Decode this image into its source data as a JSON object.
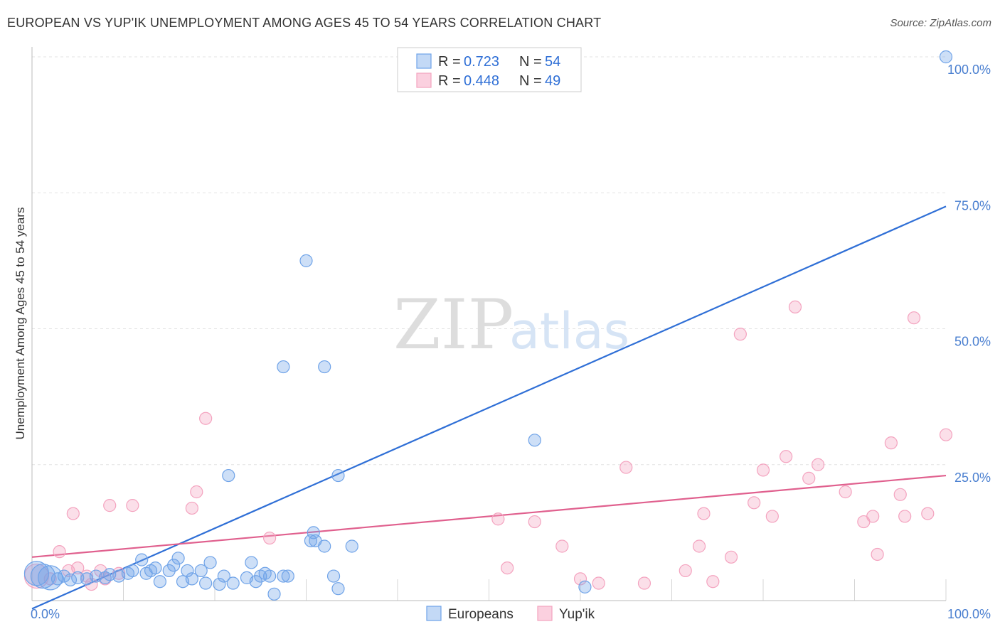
{
  "title": "EUROPEAN VS YUP'IK UNEMPLOYMENT AMONG AGES 45 TO 54 YEARS CORRELATION CHART",
  "source": "Source: ZipAtlas.com",
  "watermark": {
    "zip": "ZIP",
    "atlas": "atlas"
  },
  "chart_data": {
    "type": "scatter",
    "title": "EUROPEAN VS YUP'IK UNEMPLOYMENT AMONG AGES 45 TO 54 YEARS CORRELATION CHART",
    "xlabel": "",
    "ylabel": "Unemployment Among Ages 45 to 54 years",
    "xlim": [
      0,
      100
    ],
    "ylim": [
      0,
      100
    ],
    "x_ticks": [
      "0.0%",
      "100.0%"
    ],
    "y_ticks": [
      {
        "value": 25,
        "label": "25.0%"
      },
      {
        "value": 50,
        "label": "50.0%"
      },
      {
        "value": 75,
        "label": "75.0%"
      },
      {
        "value": 100,
        "label": "100.0%"
      }
    ],
    "grid": true,
    "legend_position": "top-center",
    "series": [
      {
        "name": "Europeans",
        "color": "#6fa3e8",
        "line_color": "#2f6fd6",
        "r_label": "R =",
        "r_value": "0.723",
        "n_label": "N =",
        "n_value": "54",
        "trend": {
          "x": [
            0,
            100
          ],
          "y": [
            -1.5,
            72.5
          ]
        },
        "points": [
          {
            "x": 0.5,
            "y": 5.0,
            "big": true
          },
          {
            "x": 1.2,
            "y": 4.5,
            "big": true
          },
          {
            "x": 2.0,
            "y": 4.2,
            "big": true
          },
          {
            "x": 2.8,
            "y": 4.0
          },
          {
            "x": 3.5,
            "y": 4.5
          },
          {
            "x": 4.2,
            "y": 3.8
          },
          {
            "x": 5.0,
            "y": 4.2
          },
          {
            "x": 6.0,
            "y": 4.0
          },
          {
            "x": 7.0,
            "y": 4.5
          },
          {
            "x": 8.0,
            "y": 4.2
          },
          {
            "x": 8.5,
            "y": 4.8
          },
          {
            "x": 9.5,
            "y": 4.5
          },
          {
            "x": 10.5,
            "y": 5.0
          },
          {
            "x": 11.0,
            "y": 5.5
          },
          {
            "x": 12.0,
            "y": 7.5
          },
          {
            "x": 12.5,
            "y": 5.0
          },
          {
            "x": 13.0,
            "y": 5.5
          },
          {
            "x": 13.5,
            "y": 6.0
          },
          {
            "x": 14.0,
            "y": 3.5
          },
          {
            "x": 15.0,
            "y": 5.5
          },
          {
            "x": 15.5,
            "y": 6.5
          },
          {
            "x": 16.0,
            "y": 7.8
          },
          {
            "x": 16.5,
            "y": 3.5
          },
          {
            "x": 17.0,
            "y": 5.5
          },
          {
            "x": 17.5,
            "y": 4.0
          },
          {
            "x": 18.5,
            "y": 5.5
          },
          {
            "x": 19.0,
            "y": 3.2
          },
          {
            "x": 19.5,
            "y": 7.0
          },
          {
            "x": 20.5,
            "y": 3.0
          },
          {
            "x": 21.0,
            "y": 4.5
          },
          {
            "x": 22.0,
            "y": 3.2
          },
          {
            "x": 23.5,
            "y": 4.2
          },
          {
            "x": 24.0,
            "y": 7.0
          },
          {
            "x": 24.5,
            "y": 3.5
          },
          {
            "x": 25.0,
            "y": 4.5
          },
          {
            "x": 25.5,
            "y": 5.0
          },
          {
            "x": 26.0,
            "y": 4.5
          },
          {
            "x": 26.5,
            "y": 1.2
          },
          {
            "x": 27.5,
            "y": 4.5
          },
          {
            "x": 28.0,
            "y": 4.5
          },
          {
            "x": 30.5,
            "y": 11.0
          },
          {
            "x": 30.8,
            "y": 12.5
          },
          {
            "x": 31.0,
            "y": 11.0
          },
          {
            "x": 32.0,
            "y": 10.0
          },
          {
            "x": 33.0,
            "y": 4.5
          },
          {
            "x": 33.5,
            "y": 2.2
          },
          {
            "x": 35.0,
            "y": 10.0
          },
          {
            "x": 27.5,
            "y": 43.0
          },
          {
            "x": 32.0,
            "y": 43.0
          },
          {
            "x": 30.0,
            "y": 62.5
          },
          {
            "x": 21.5,
            "y": 23.0
          },
          {
            "x": 33.5,
            "y": 23.0
          },
          {
            "x": 55.0,
            "y": 29.5
          },
          {
            "x": 60.5,
            "y": 2.5
          },
          {
            "x": 100.0,
            "y": 100.0
          }
        ]
      },
      {
        "name": "Yup'ik",
        "color": "#f4a3bf",
        "line_color": "#e0608e",
        "r_label": "R =",
        "r_value": "0.448",
        "n_label": "N =",
        "n_value": "49",
        "trend": {
          "x": [
            0,
            100
          ],
          "y": [
            8.0,
            23.0
          ]
        },
        "points": [
          {
            "x": 0.5,
            "y": 4.5,
            "big": true
          },
          {
            "x": 2.0,
            "y": 4.0
          },
          {
            "x": 3.0,
            "y": 9.0
          },
          {
            "x": 4.0,
            "y": 5.5
          },
          {
            "x": 5.0,
            "y": 6.0
          },
          {
            "x": 6.0,
            "y": 4.5
          },
          {
            "x": 6.5,
            "y": 3.0
          },
          {
            "x": 7.5,
            "y": 5.5
          },
          {
            "x": 8.0,
            "y": 4.0
          },
          {
            "x": 9.5,
            "y": 5.0
          },
          {
            "x": 4.5,
            "y": 16.0
          },
          {
            "x": 8.5,
            "y": 17.5
          },
          {
            "x": 11.0,
            "y": 17.5
          },
          {
            "x": 17.5,
            "y": 17.0
          },
          {
            "x": 18.0,
            "y": 20.0
          },
          {
            "x": 19.0,
            "y": 33.5
          },
          {
            "x": 26.0,
            "y": 11.5
          },
          {
            "x": 51.0,
            "y": 15.0
          },
          {
            "x": 52.0,
            "y": 6.0
          },
          {
            "x": 55.0,
            "y": 14.5
          },
          {
            "x": 58.0,
            "y": 10.0
          },
          {
            "x": 60.0,
            "y": 4.0
          },
          {
            "x": 62.0,
            "y": 3.2
          },
          {
            "x": 65.0,
            "y": 24.5
          },
          {
            "x": 67.0,
            "y": 3.2
          },
          {
            "x": 71.5,
            "y": 5.5
          },
          {
            "x": 73.0,
            "y": 10.0
          },
          {
            "x": 73.5,
            "y": 16.0
          },
          {
            "x": 74.5,
            "y": 3.5
          },
          {
            "x": 76.5,
            "y": 8.0
          },
          {
            "x": 77.5,
            "y": 49.0
          },
          {
            "x": 79.0,
            "y": 18.0
          },
          {
            "x": 80.0,
            "y": 24.0
          },
          {
            "x": 81.0,
            "y": 15.5
          },
          {
            "x": 82.5,
            "y": 26.5
          },
          {
            "x": 83.5,
            "y": 54.0
          },
          {
            "x": 85.0,
            "y": 22.5
          },
          {
            "x": 86.0,
            "y": 25.0
          },
          {
            "x": 89.0,
            "y": 20.0
          },
          {
            "x": 91.0,
            "y": 14.5
          },
          {
            "x": 92.0,
            "y": 15.5
          },
          {
            "x": 92.5,
            "y": 8.5
          },
          {
            "x": 94.0,
            "y": 29.0
          },
          {
            "x": 95.0,
            "y": 19.5
          },
          {
            "x": 95.5,
            "y": 15.5
          },
          {
            "x": 96.5,
            "y": 52.0
          },
          {
            "x": 98.0,
            "y": 16.0
          },
          {
            "x": 100.0,
            "y": 30.5
          }
        ]
      }
    ]
  }
}
